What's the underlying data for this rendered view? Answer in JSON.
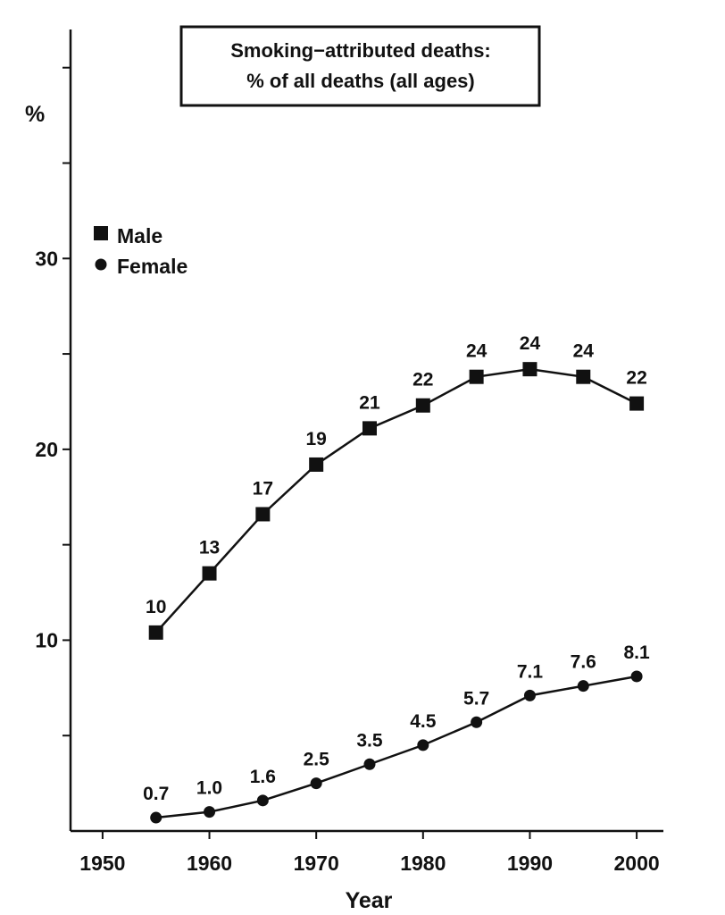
{
  "chart_data": {
    "type": "line",
    "title_lines": [
      "Smoking−attributed deaths:",
      "% of all deaths (all ages)"
    ],
    "xlabel": "Year",
    "ylabel": "%",
    "xlim": [
      1947,
      2002.5
    ],
    "ylim": [
      0,
      42
    ],
    "x_ticks": [
      1950,
      1960,
      1970,
      1980,
      1990,
      2000
    ],
    "y_ticks": [
      5,
      10,
      15,
      20,
      25,
      30,
      35,
      40
    ],
    "y_tick_labels": {
      "10": "10",
      "20": "20",
      "30": "30"
    },
    "x": [
      1955,
      1960,
      1965,
      1970,
      1975,
      1980,
      1985,
      1990,
      1995,
      2000
    ],
    "series": [
      {
        "name": "Male",
        "marker": "square",
        "values": [
          10.4,
          13.5,
          16.6,
          19.2,
          21.1,
          22.3,
          23.8,
          24.2,
          23.8,
          22.4
        ],
        "labels": [
          "10",
          "13",
          "17",
          "19",
          "21",
          "22",
          "24",
          "24",
          "24",
          "22"
        ]
      },
      {
        "name": "Female",
        "marker": "circle",
        "values": [
          0.7,
          1.0,
          1.6,
          2.5,
          3.5,
          4.5,
          5.7,
          7.1,
          7.6,
          8.1
        ],
        "labels": [
          "0.7",
          "1.0",
          "1.6",
          "2.5",
          "3.5",
          "4.5",
          "5.7",
          "7.1",
          "7.6",
          "8.1"
        ]
      }
    ],
    "legend_position": "left, upper-middle",
    "grid": false,
    "colors": {
      "ink": "#111111",
      "background": "#ffffff"
    }
  }
}
